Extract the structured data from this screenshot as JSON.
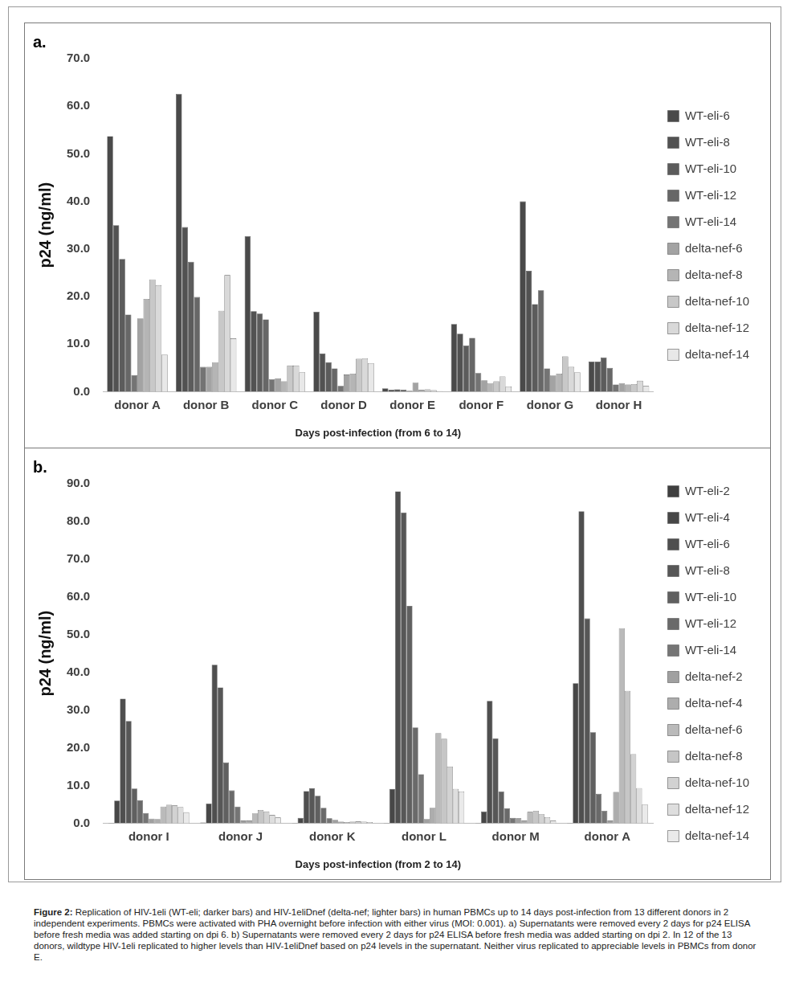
{
  "chart_data": [
    {
      "type": "bar",
      "title": "a.",
      "y_label": "p24 (ng/ml)",
      "x_label": "Days post-infection (from 6 to 14)",
      "categories": [
        "donor A",
        "donor B",
        "donor C",
        "donor D",
        "donor E",
        "donor F",
        "donor G",
        "donor H"
      ],
      "ylim": [
        0,
        70
      ],
      "yticks": [
        {
          "value": 0,
          "label": "0.0"
        },
        {
          "value": 10,
          "label": "10.0"
        },
        {
          "value": 20,
          "label": "20.0"
        },
        {
          "value": 30,
          "label": "30.0"
        },
        {
          "value": 40,
          "label": "40.0"
        },
        {
          "value": 50,
          "label": "50.0"
        },
        {
          "value": 60,
          "label": "60.0"
        },
        {
          "value": 70,
          "label": "70.0"
        }
      ],
      "grid": false,
      "legend": "right",
      "series": [
        {
          "name": "WT-eli-6",
          "color": "#4a4a4a",
          "values": [
            53.7,
            62.6,
            32.7,
            16.8,
            0.7,
            14.2,
            40.0,
            6.3
          ]
        },
        {
          "name": "WT-eli-8",
          "color": "#525252",
          "values": [
            35.0,
            34.6,
            16.9,
            8.0,
            0.4,
            12.2,
            25.4,
            6.3
          ]
        },
        {
          "name": "WT-eli-10",
          "color": "#5c5c5c",
          "values": [
            27.9,
            27.3,
            16.4,
            6.2,
            0.5,
            9.7,
            18.4,
            7.2
          ]
        },
        {
          "name": "WT-eli-12",
          "color": "#676767",
          "values": [
            16.2,
            19.9,
            15.2,
            4.9,
            0.4,
            11.3,
            21.3,
            5.0
          ]
        },
        {
          "name": "WT-eli-14",
          "color": "#747474",
          "values": [
            3.5,
            5.2,
            2.6,
            1.2,
            0.2,
            3.9,
            4.9,
            1.5
          ]
        },
        {
          "name": "delta-nef-6",
          "color": "#a3a3a3",
          "values": [
            15.4,
            5.2,
            2.8,
            3.6,
            1.9,
            2.4,
            3.4,
            1.8
          ]
        },
        {
          "name": "delta-nef-8",
          "color": "#b5b5b5",
          "values": [
            19.5,
            6.2,
            2.2,
            3.8,
            0.4,
            1.8,
            3.8,
            1.5
          ]
        },
        {
          "name": "delta-nef-10",
          "color": "#c8c8c8",
          "values": [
            23.6,
            17.0,
            5.5,
            6.9,
            0.5,
            2.2,
            7.4,
            1.6
          ]
        },
        {
          "name": "delta-nef-12",
          "color": "#d9d9d9",
          "values": [
            22.4,
            24.5,
            5.5,
            7.0,
            0.3,
            3.2,
            5.2,
            2.3
          ]
        },
        {
          "name": "delta-nef-14",
          "color": "#e8e8e8",
          "values": [
            7.8,
            11.2,
            4.1,
            6.0,
            0.1,
            1.1,
            4.1,
            1.2
          ]
        }
      ]
    },
    {
      "type": "bar",
      "title": "b.",
      "y_label": "p24 (ng/ml)",
      "x_label": "Days post-infection (from 2 to 14)",
      "categories": [
        "donor I",
        "donor J",
        "donor K",
        "donor L",
        "donor M",
        "donor A"
      ],
      "ylim": [
        0,
        90
      ],
      "yticks": [
        {
          "value": 0,
          "label": "0.0"
        },
        {
          "value": 10,
          "label": "10.0"
        },
        {
          "value": 20,
          "label": "20.0"
        },
        {
          "value": 30,
          "label": "30.0"
        },
        {
          "value": 40,
          "label": "40.0"
        },
        {
          "value": 50,
          "label": "50.0"
        },
        {
          "value": 60,
          "label": "60.0"
        },
        {
          "value": 70,
          "label": "70.0"
        },
        {
          "value": 80,
          "label": "80.0"
        },
        {
          "value": 90,
          "label": "90.0"
        }
      ],
      "grid": false,
      "legend": "right",
      "series": [
        {
          "name": "WT-eli-2",
          "color": "#3f3f3f",
          "values": [
            0.1,
            0.2,
            0.1,
            0.1,
            0.1,
            0.1
          ]
        },
        {
          "name": "WT-eli-4",
          "color": "#474747",
          "values": [
            6.0,
            5.2,
            1.4,
            9.1,
            3.1,
            37.1
          ]
        },
        {
          "name": "WT-eli-6",
          "color": "#4f4f4f",
          "values": [
            33.0,
            42.0,
            8.5,
            88.0,
            32.4,
            82.7
          ]
        },
        {
          "name": "WT-eli-8",
          "color": "#575757",
          "values": [
            27.1,
            36.0,
            9.3,
            82.4,
            22.5,
            54.3
          ]
        },
        {
          "name": "WT-eli-10",
          "color": "#606060",
          "values": [
            9.2,
            16.1,
            7.3,
            57.6,
            8.4,
            24.1
          ]
        },
        {
          "name": "WT-eli-12",
          "color": "#6a6a6a",
          "values": [
            6.1,
            8.7,
            4.1,
            25.4,
            4.0,
            7.8
          ]
        },
        {
          "name": "WT-eli-14",
          "color": "#757575",
          "values": [
            2.7,
            4.4,
            1.3,
            13.0,
            1.4,
            3.3
          ]
        },
        {
          "name": "delta-nef-2",
          "color": "#a0a0a0",
          "values": [
            1.2,
            0.7,
            0.9,
            1.1,
            1.3,
            0.7
          ]
        },
        {
          "name": "delta-nef-4",
          "color": "#adadad",
          "values": [
            1.1,
            0.7,
            0.4,
            4.1,
            0.7,
            8.3
          ]
        },
        {
          "name": "delta-nef-6",
          "color": "#bababa",
          "values": [
            4.4,
            2.6,
            0.3,
            23.9,
            3.0,
            51.7
          ]
        },
        {
          "name": "delta-nef-8",
          "color": "#c6c6c6",
          "values": [
            4.9,
            3.5,
            0.4,
            22.4,
            3.3,
            35.1
          ]
        },
        {
          "name": "delta-nef-10",
          "color": "#d2d2d2",
          "values": [
            4.7,
            3.1,
            0.5,
            15.0,
            2.4,
            18.3
          ]
        },
        {
          "name": "delta-nef-12",
          "color": "#dedede",
          "values": [
            4.3,
            2.2,
            0.4,
            9.1,
            1.6,
            9.3
          ]
        },
        {
          "name": "delta-nef-14",
          "color": "#eaeaea",
          "values": [
            2.9,
            1.5,
            0.3,
            8.4,
            0.7,
            5.0
          ]
        }
      ]
    }
  ],
  "caption": {
    "label": "Figure 2:",
    "text": "Replication of HIV-1eli (WT-eli; darker bars) and HIV-1eliDnef (delta-nef; lighter bars) in human PBMCs up to 14 days post-infection from 13 different donors in 2 independent experiments. PBMCs were activated with PHA overnight before infection with either virus (MOI: 0.001). a) Supernatants were removed every 2 days for p24 ELISA before fresh media was added starting on dpi 6. b) Supernatants were removed every 2 days for p24 ELISA before fresh media was added starting on dpi 2. In 12 of the 13 donors, wildtype HIV-1eli replicated to higher levels than HIV-1eliDnef based on p24 levels in the supernatant. Neither virus replicated to appreciable levels in PBMCs from donor E."
  }
}
